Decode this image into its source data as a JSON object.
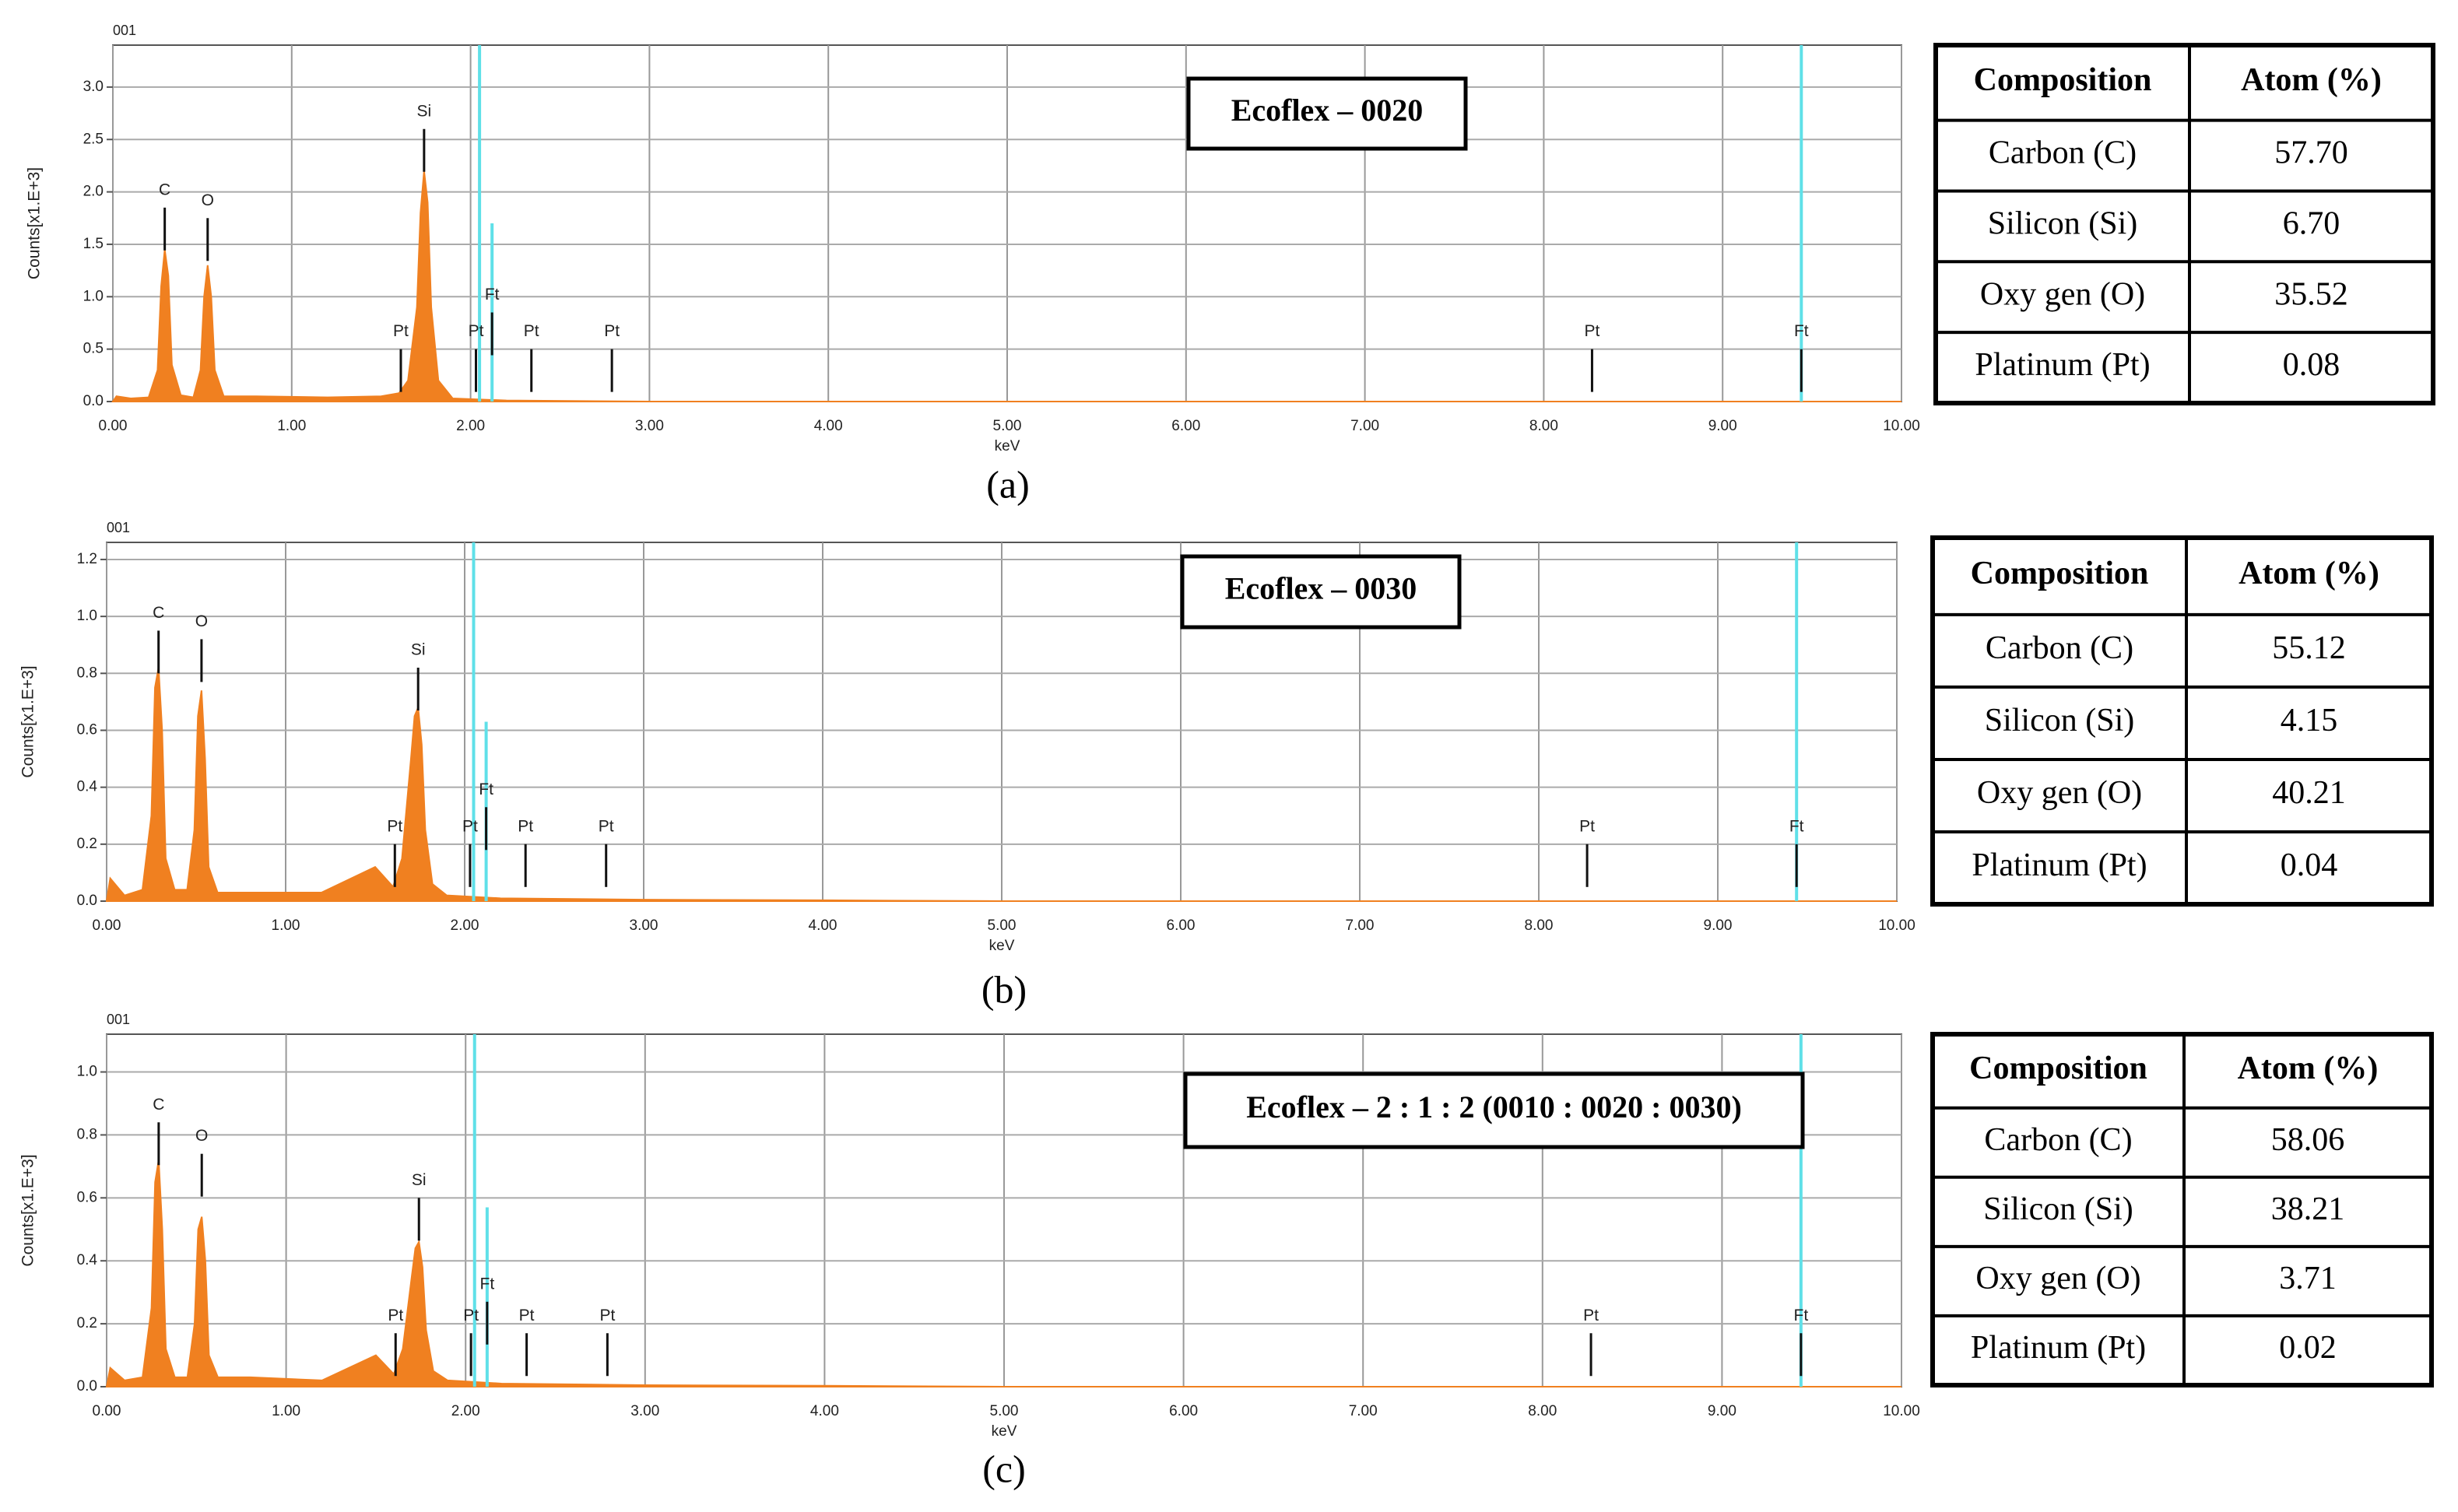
{
  "chart_data": [
    {
      "type": "area",
      "title": "Ecoflex – 0020",
      "corner_label": "001",
      "x_label": "keV",
      "y_label": "Counts[x1.E+3]",
      "color": "#f08020",
      "grid": true,
      "x": [
        0.0,
        0.02,
        0.1,
        0.2,
        0.25,
        0.27,
        0.29,
        0.31,
        0.33,
        0.38,
        0.45,
        0.49,
        0.51,
        0.53,
        0.55,
        0.57,
        0.62,
        0.8,
        1.2,
        1.5,
        1.6,
        1.65,
        1.7,
        1.72,
        1.74,
        1.76,
        1.78,
        1.82,
        1.9,
        2.2,
        3,
        4,
        5,
        6,
        7,
        8,
        9,
        10
      ],
      "values": [
        0,
        0.05,
        0.03,
        0.04,
        0.3,
        1.1,
        1.45,
        1.2,
        0.35,
        0.06,
        0.04,
        0.3,
        1.0,
        1.3,
        1.0,
        0.3,
        0.05,
        0.05,
        0.04,
        0.05,
        0.08,
        0.2,
        0.9,
        1.8,
        2.2,
        1.9,
        0.9,
        0.2,
        0.03,
        0.01,
        0,
        0,
        0,
        0,
        0,
        0,
        0,
        0
      ],
      "xlim": [
        0,
        10
      ],
      "ylim": [
        0,
        3.4
      ],
      "xticks": [
        {
          "value": 0,
          "label": "0.00"
        },
        {
          "value": 1,
          "label": "1.00"
        },
        {
          "value": 2,
          "label": "2.00"
        },
        {
          "value": 3,
          "label": "3.00"
        },
        {
          "value": 4,
          "label": "4.00"
        },
        {
          "value": 5,
          "label": "5.00"
        },
        {
          "value": 6,
          "label": "6.00"
        },
        {
          "value": 7,
          "label": "7.00"
        },
        {
          "value": 8,
          "label": "8.00"
        },
        {
          "value": 9,
          "label": "9.00"
        },
        {
          "value": 10,
          "label": "10.00"
        }
      ],
      "yticks": [
        {
          "value": 0,
          "label": "0.0"
        },
        0.5,
        {
          "value": 1,
          "label": "1.0"
        },
        1.5,
        {
          "value": 2,
          "label": "2.0"
        },
        2.5,
        {
          "value": 3,
          "label": "3.0"
        }
      ],
      "markers": [
        {
          "label": "C",
          "x": 0.29,
          "y": 1.85
        },
        {
          "label": "O",
          "x": 0.53,
          "y": 1.75
        },
        {
          "label": "Si",
          "x": 1.74,
          "y": 2.6
        },
        {
          "label": "Pt",
          "x": 1.61,
          "y": 0.5
        },
        {
          "label": "Pt",
          "x": 2.03,
          "y": 0.5
        },
        {
          "label": "Ft",
          "x": 2.12,
          "y": 0.85
        },
        {
          "label": "Pt",
          "x": 2.34,
          "y": 0.5
        },
        {
          "label": "Pt",
          "x": 2.79,
          "y": 0.5
        },
        {
          "label": "Pt",
          "x": 8.27,
          "y": 0.5
        },
        {
          "label": "Ft",
          "x": 9.44,
          "y": 0.5
        }
      ],
      "ref_lines": {
        "color": "#5fe0e8",
        "x": [
          2.05,
          2.12,
          9.44
        ],
        "y": [
          3.4,
          1.7,
          3.4
        ]
      }
    },
    {
      "type": "area",
      "title": "Ecoflex – 0030",
      "corner_label": "001",
      "x_label": "keV",
      "y_label": "Counts[x1.E+3]",
      "color": "#f08020",
      "grid": true,
      "x": [
        0.0,
        0.02,
        0.1,
        0.2,
        0.25,
        0.27,
        0.29,
        0.31,
        0.33,
        0.38,
        0.45,
        0.49,
        0.51,
        0.53,
        0.55,
        0.57,
        0.62,
        0.8,
        1.2,
        1.5,
        1.6,
        1.65,
        1.7,
        1.72,
        1.74,
        1.76,
        1.78,
        1.82,
        1.9,
        2.2,
        3,
        4,
        5,
        6,
        7,
        8,
        9,
        10
      ],
      "values": [
        0,
        0.08,
        0.02,
        0.04,
        0.3,
        0.75,
        0.82,
        0.6,
        0.15,
        0.04,
        0.04,
        0.25,
        0.65,
        0.74,
        0.5,
        0.12,
        0.03,
        0.03,
        0.03,
        0.12,
        0.05,
        0.15,
        0.5,
        0.65,
        0.68,
        0.55,
        0.25,
        0.06,
        0.02,
        0.01,
        0.005,
        0.003,
        0,
        0,
        0,
        0,
        0,
        0
      ],
      "xlim": [
        0,
        10
      ],
      "ylim": [
        0,
        1.26
      ],
      "xticks": [
        {
          "value": 0,
          "label": "0.00"
        },
        {
          "value": 1,
          "label": "1.00"
        },
        {
          "value": 2,
          "label": "2.00"
        },
        {
          "value": 3,
          "label": "3.00"
        },
        {
          "value": 4,
          "label": "4.00"
        },
        {
          "value": 5,
          "label": "5.00"
        },
        {
          "value": 6,
          "label": "6.00"
        },
        {
          "value": 7,
          "label": "7.00"
        },
        {
          "value": 8,
          "label": "8.00"
        },
        {
          "value": 9,
          "label": "9.00"
        },
        {
          "value": 10,
          "label": "10.00"
        }
      ],
      "yticks": [
        {
          "value": 0,
          "label": "0.0"
        },
        0.2,
        0.4,
        0.6,
        0.8,
        {
          "value": 1,
          "label": "1.0"
        },
        1.2
      ],
      "markers": [
        {
          "label": "C",
          "x": 0.29,
          "y": 0.95
        },
        {
          "label": "O",
          "x": 0.53,
          "y": 0.92
        },
        {
          "label": "Si",
          "x": 1.74,
          "y": 0.82
        },
        {
          "label": "Pt",
          "x": 1.61,
          "y": 0.2
        },
        {
          "label": "Pt",
          "x": 2.03,
          "y": 0.2
        },
        {
          "label": "Ft",
          "x": 2.12,
          "y": 0.33
        },
        {
          "label": "Pt",
          "x": 2.34,
          "y": 0.2
        },
        {
          "label": "Pt",
          "x": 2.79,
          "y": 0.2
        },
        {
          "label": "Pt",
          "x": 8.27,
          "y": 0.2
        },
        {
          "label": "Ft",
          "x": 9.44,
          "y": 0.2
        }
      ],
      "ref_lines": {
        "color": "#5fe0e8",
        "x": [
          2.05,
          2.12,
          9.44
        ],
        "y": [
          1.26,
          0.63,
          1.26
        ]
      }
    },
    {
      "type": "area",
      "title": "Ecoflex – 2 : 1 : 2 (0010 : 0020 : 0030)",
      "corner_label": "001",
      "x_label": "keV",
      "y_label": "Counts[x1.E+3]",
      "color": "#f08020",
      "grid": true,
      "x": [
        0.0,
        0.02,
        0.1,
        0.2,
        0.25,
        0.27,
        0.29,
        0.31,
        0.33,
        0.38,
        0.45,
        0.49,
        0.51,
        0.53,
        0.55,
        0.57,
        0.62,
        0.8,
        1.2,
        1.5,
        1.6,
        1.65,
        1.7,
        1.72,
        1.74,
        1.76,
        1.78,
        1.82,
        1.9,
        2.2,
        3,
        4,
        5,
        6,
        7,
        8,
        9,
        10
      ],
      "values": [
        0,
        0.06,
        0.02,
        0.03,
        0.25,
        0.65,
        0.72,
        0.5,
        0.12,
        0.03,
        0.03,
        0.2,
        0.5,
        0.54,
        0.4,
        0.1,
        0.03,
        0.03,
        0.02,
        0.1,
        0.04,
        0.12,
        0.35,
        0.44,
        0.46,
        0.38,
        0.18,
        0.05,
        0.02,
        0.01,
        0.005,
        0.003,
        0,
        0,
        0,
        0,
        0,
        0
      ],
      "xlim": [
        0,
        10
      ],
      "ylim": [
        0,
        1.12
      ],
      "xticks": [
        {
          "value": 0,
          "label": "0.00"
        },
        {
          "value": 1,
          "label": "1.00"
        },
        {
          "value": 2,
          "label": "2.00"
        },
        {
          "value": 3,
          "label": "3.00"
        },
        {
          "value": 4,
          "label": "4.00"
        },
        {
          "value": 5,
          "label": "5.00"
        },
        {
          "value": 6,
          "label": "6.00"
        },
        {
          "value": 7,
          "label": "7.00"
        },
        {
          "value": 8,
          "label": "8.00"
        },
        {
          "value": 9,
          "label": "9.00"
        },
        {
          "value": 10,
          "label": "10.00"
        }
      ],
      "yticks": [
        {
          "value": 0,
          "label": "0.0"
        },
        0.2,
        0.4,
        0.6,
        0.8,
        {
          "value": 1,
          "label": "1.0"
        }
      ],
      "markers": [
        {
          "label": "C",
          "x": 0.29,
          "y": 0.84
        },
        {
          "label": "O",
          "x": 0.53,
          "y": 0.74
        },
        {
          "label": "Si",
          "x": 1.74,
          "y": 0.6
        },
        {
          "label": "Pt",
          "x": 1.61,
          "y": 0.17
        },
        {
          "label": "Pt",
          "x": 2.03,
          "y": 0.17
        },
        {
          "label": "Ft",
          "x": 2.12,
          "y": 0.27
        },
        {
          "label": "Pt",
          "x": 2.34,
          "y": 0.17
        },
        {
          "label": "Pt",
          "x": 2.79,
          "y": 0.17
        },
        {
          "label": "Pt",
          "x": 8.27,
          "y": 0.17
        },
        {
          "label": "Ft",
          "x": 9.44,
          "y": 0.17
        }
      ],
      "ref_lines": {
        "color": "#5fe0e8",
        "x": [
          2.05,
          2.12,
          9.44
        ],
        "y": [
          1.12,
          0.57,
          1.12
        ]
      }
    }
  ],
  "tables": [
    {
      "header": [
        "Composition",
        "Atom (%)"
      ],
      "rows": [
        [
          "Carbon (C)",
          "57.70"
        ],
        [
          "Silicon (Si)",
          "6.70"
        ],
        [
          "Oxy gen (O)",
          "35.52"
        ],
        [
          "Platinum (Pt)",
          "0.08"
        ]
      ]
    },
    {
      "header": [
        "Composition",
        "Atom (%)"
      ],
      "rows": [
        [
          "Carbon (C)",
          "55.12"
        ],
        [
          "Silicon (Si)",
          "4.15"
        ],
        [
          "Oxy gen (O)",
          "40.21"
        ],
        [
          "Platinum (Pt)",
          "0.04"
        ]
      ]
    },
    {
      "header": [
        "Composition",
        "Atom (%)"
      ],
      "rows": [
        [
          "Carbon (C)",
          "58.06"
        ],
        [
          "Silicon (Si)",
          "38.21"
        ],
        [
          "Oxy gen (O)",
          "3.71"
        ],
        [
          "Platinum (Pt)",
          "0.02"
        ]
      ]
    }
  ],
  "captions": [
    "(a)",
    "(b)",
    "(c)"
  ]
}
